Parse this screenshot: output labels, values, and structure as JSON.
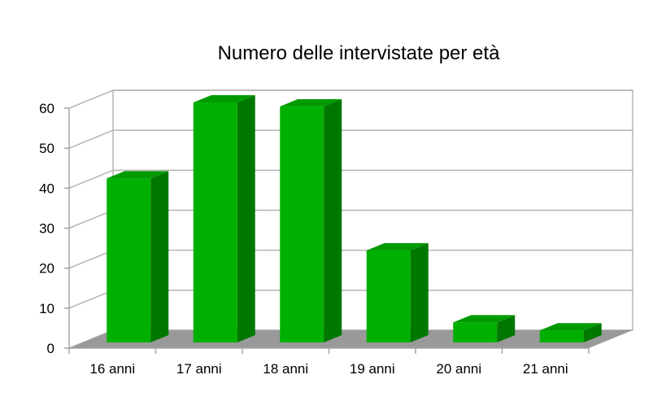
{
  "chart_data": {
    "type": "bar",
    "title": "Numero delle intervistate per età",
    "xlabel": "",
    "ylabel": "",
    "categories": [
      "16 anni",
      "17 anni",
      "18 anni",
      "19 anni",
      "20 anni",
      "21 anni"
    ],
    "values": [
      41,
      60,
      59,
      23,
      5,
      3
    ],
    "ylim": [
      0,
      60
    ],
    "yticks": [
      0,
      10,
      20,
      30,
      40,
      50,
      60
    ],
    "grid": true,
    "legend": "none",
    "style": "3d-column",
    "colors": {
      "bar_front": "#00b000",
      "bar_side": "#007800",
      "bar_top": "#009a00",
      "floor": "#999999",
      "gridline": "#b5b5b5",
      "axis": "#a6a6a6"
    }
  }
}
